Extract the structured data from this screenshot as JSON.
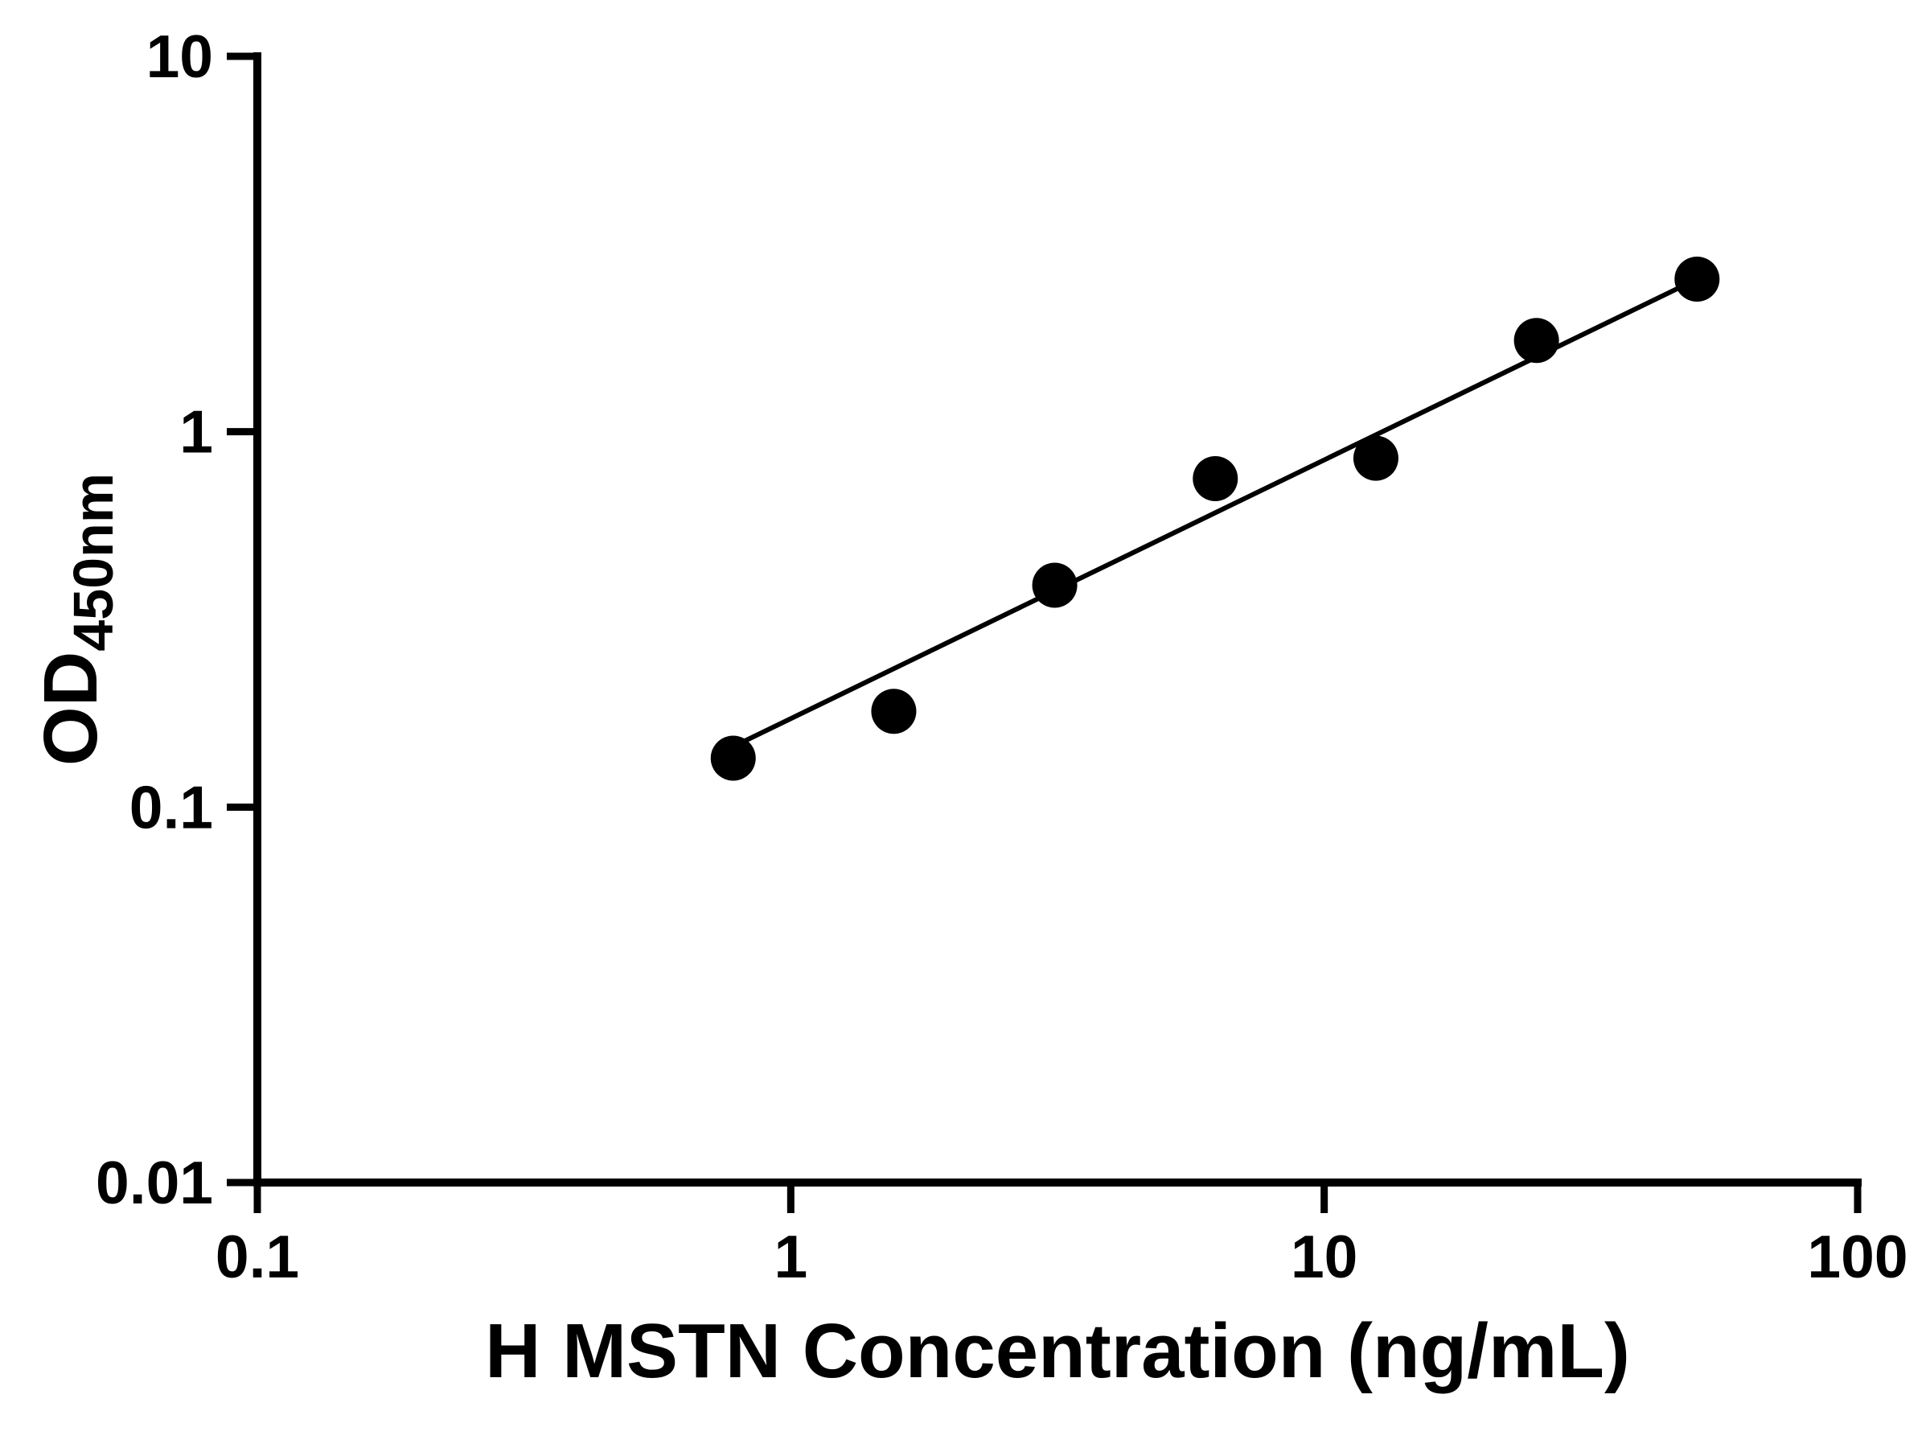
{
  "chart_data": {
    "type": "scatter",
    "title": "",
    "xlabel": "H MSTN Concentration (ng/mL)",
    "ylabel_main": "OD",
    "ylabel_sub": "450nm",
    "x_scale": "log",
    "y_scale": "log",
    "xlim": [
      0.1,
      100
    ],
    "ylim": [
      0.01,
      10
    ],
    "x_ticks": [
      0.1,
      1,
      10,
      100
    ],
    "x_tick_labels": [
      "0.1",
      "1",
      "10",
      "100"
    ],
    "y_ticks": [
      0.01,
      0.1,
      1,
      10
    ],
    "y_tick_labels": [
      "0.01",
      "0.1",
      "1",
      "10"
    ],
    "grid": "off",
    "legend": "none",
    "points": [
      {
        "x": 0.78,
        "y": 0.135
      },
      {
        "x": 1.56,
        "y": 0.18
      },
      {
        "x": 3.125,
        "y": 0.39
      },
      {
        "x": 6.25,
        "y": 0.75
      },
      {
        "x": 12.5,
        "y": 0.85
      },
      {
        "x": 25,
        "y": 1.75
      },
      {
        "x": 50,
        "y": 2.55
      }
    ],
    "trend_line": {
      "x1": 0.78,
      "y1": 0.145,
      "x2": 50,
      "y2": 2.55
    },
    "marker_color": "#000000",
    "line_color": "#000000",
    "axis_color": "#000000",
    "background_color": "#ffffff",
    "marker_radius": 28
  }
}
